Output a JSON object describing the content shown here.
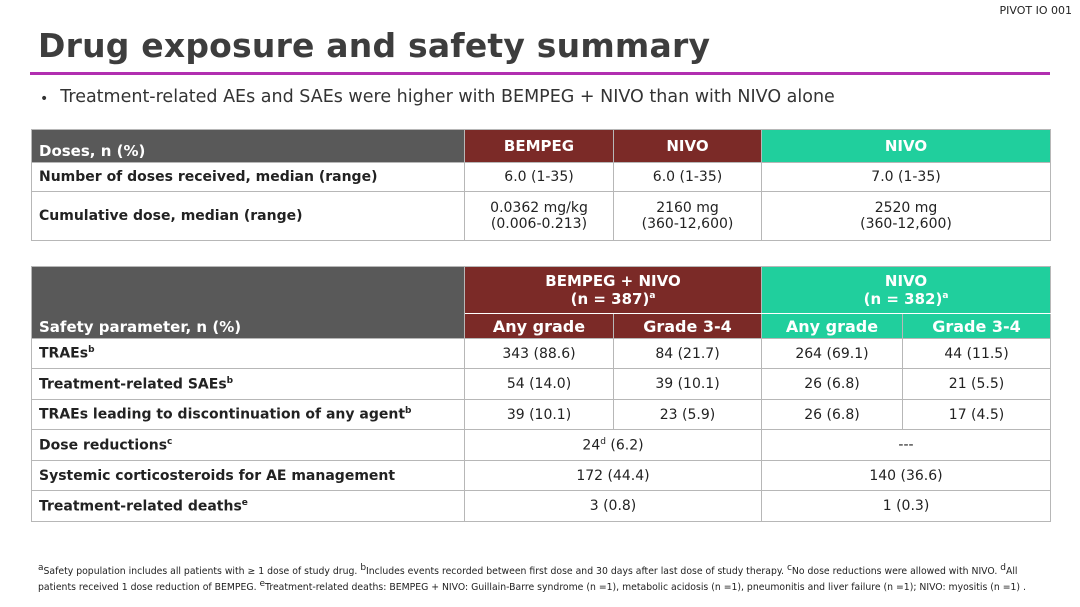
{
  "tag": "PIVOT IO 001",
  "title": "Drug exposure and safety summary",
  "bullet": "Treatment-related AEs and SAEs were higher with BEMPEG + NIVO than with NIVO alone",
  "dose_table": {
    "header_label": "Doses, n (%)",
    "cols": [
      "BEMPEG",
      "NIVO",
      "NIVO"
    ],
    "rows": [
      {
        "label": "Number of doses received, median (range)",
        "c1": "6.0 (1-35)",
        "c2": "6.0 (1-35)",
        "c3": "7.0 (1-35)"
      },
      {
        "label": "Cumulative dose, median (range)",
        "c1a": "0.0362 mg/kg",
        "c1b": "(0.006-0.213)",
        "c2a": "2160 mg",
        "c2b": "(360-12,600)",
        "c3a": "2520 mg",
        "c3b": "(360-12,600)"
      }
    ]
  },
  "safety_table": {
    "header_label": "Safety parameter, n (%)",
    "group1": {
      "name": "BEMPEG + NIVO",
      "n": "(n = 387)",
      "sup": "a"
    },
    "group2": {
      "name": "NIVO",
      "n": "(n = 382)",
      "sup": "a"
    },
    "sub": [
      "Any grade",
      "Grade 3-4",
      "Any grade",
      "Grade 3-4"
    ],
    "rows": [
      {
        "label": "TRAEs",
        "sup": "b",
        "v": [
          "343 (88.6)",
          "84 (21.7)",
          "264 (69.1)",
          "44 (11.5)"
        ]
      },
      {
        "label": "Treatment-related SAEs",
        "sup": "b",
        "v": [
          "54 (14.0)",
          "39 (10.1)",
          "26 (6.8)",
          "21 (5.5)"
        ]
      },
      {
        "label": "TRAEs leading to discontinuation of any agent",
        "sup": "b",
        "v": [
          "39 (10.1)",
          "23 (5.9)",
          "26 (6.8)",
          "17 (4.5)"
        ]
      }
    ],
    "dose_red": {
      "label": "Dose reductions",
      "sup": "c",
      "g1_pre": "24",
      "g1_sup": "d",
      "g1_post": " (6.2)",
      "g2": "---"
    },
    "cortico": {
      "label": "Systemic corticosteroids for AE management",
      "g1": "172 (44.4)",
      "g2": "140 (36.6)"
    },
    "deaths": {
      "label": "Treatment-related deaths",
      "sup": "e",
      "g1": "3 (0.8)",
      "g2": "1 (0.3)"
    }
  },
  "footnote": {
    "a_sup": "a",
    "a": "Safety population includes all patients with ≥ 1 dose of study drug. ",
    "b_sup": "b",
    "b": "Includes events recorded between first dose and 30 days after last dose of study therapy. ",
    "c_sup": "c",
    "c": "No dose reductions were allowed with NIVO. ",
    "d_sup": "d",
    "d": "All patients received 1 dose reduction of BEMPEG. ",
    "e_sup": "e",
    "e": "Treatment-related deaths: BEMPEG + NIVO: Guillain-Barre syndrome (n =1), metabolic acidosis (n =1), pneumonitis and liver failure (n =1); NIVO: myositis (n =1) ."
  },
  "colors": {
    "accent": "#b12fb0",
    "dark": "#595959",
    "red": "#7b2a27",
    "teal": "#20cf9d"
  }
}
